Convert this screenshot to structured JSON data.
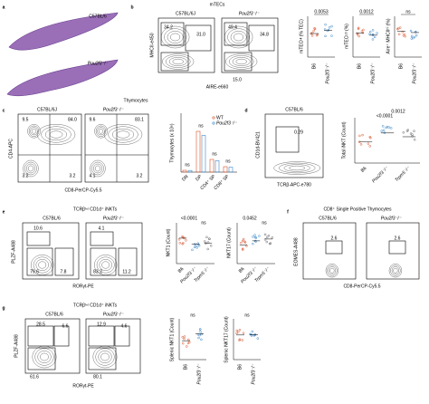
{
  "panel_a": {
    "letter": "a",
    "labels": [
      "C57BL/6",
      "Pou2f3⁻/⁻"
    ]
  },
  "panel_b": {
    "letter": "b",
    "title": "mTECs",
    "columns": [
      "C57BL/6J",
      "Pou2f3⁻/⁻"
    ],
    "y_axis": "MHCII-e450",
    "x_axis": "AIRE-e660",
    "gates": [
      [
        "34.2",
        "31.0"
      ],
      [
        "49.4",
        "34.8",
        "15.0"
      ]
    ],
    "plots": [
      {
        "y_axis": "mTECᴴᴵ (% TEC)",
        "stat": "0.0053",
        "groups": [
          "B6",
          "Pou2f3⁻/⁻"
        ]
      },
      {
        "y_axis": "mTECᴸᴼ (%)",
        "stat": "0.0012",
        "groups": [
          "B6",
          "Pou2f3⁻/⁻"
        ]
      },
      {
        "y_axis": "Aire⁺ MHCIIʰⁱ (%)",
        "stat": "ns",
        "groups": [
          "B6",
          "Pou2f3⁻/⁻"
        ]
      }
    ]
  },
  "panel_c": {
    "letter": "c",
    "title": "Thymocytes",
    "columns": [
      "C57BL/6J",
      "Pou2f3⁻/⁻"
    ],
    "y_axis": "CD4-APC",
    "x_axis": "CD8-PerCP-Cy5.5",
    "gates": [
      [
        "9.5",
        "84.0",
        "3.2",
        "3.2"
      ],
      [
        "9.6",
        "83.1",
        "4.1",
        "3.2"
      ]
    ],
    "plot": {
      "y_axis": "Thymocytes (x 10⁶)",
      "categories": [
        "DN",
        "DP",
        "CD4⁺ SP",
        "CD8⁺ SP"
      ],
      "legend": [
        "WT",
        "Pou2f3⁻/⁻"
      ],
      "stats": [
        "ns",
        "ns",
        "ns",
        "ns"
      ]
    }
  },
  "panel_d": {
    "letter": "d",
    "column": "C57BL/6",
    "gate": "0.29",
    "y_axis": "CD1d-BV421",
    "x_axis": "TCRβ-APC-e780",
    "plot": {
      "y_axis": "Total iNKT (Count)",
      "stats": [
        "0.0012",
        "<0.0001"
      ],
      "groups": [
        "B6",
        "Pou2f3⁻/⁻",
        "Trpm5⁻/⁻"
      ]
    }
  },
  "panel_e": {
    "letter": "e",
    "title": "TCRβᴵⁿᵗ CD1d⁺ iNKTs",
    "columns": [
      "C57BL/6",
      "Pou2f3⁻/⁻"
    ],
    "y_axis": "PLZF-A488",
    "x_axis": "RORγt-PE",
    "gates": [
      [
        "10.6",
        "79.6",
        "7.8"
      ],
      [
        "4.1",
        "83.2",
        "11.2"
      ]
    ],
    "plots": [
      {
        "y_axis": "NKT1 (Count)",
        "stats": [
          "<0.0001",
          "ns"
        ],
        "groups": [
          "B6",
          "Pou2f3⁻/⁻",
          "Trpm5⁻/⁻"
        ]
      },
      {
        "y_axis": "NKT17 (Count)",
        "stats": [
          "0.0452",
          "ns"
        ],
        "groups": [
          "B6",
          "Pou2f3⁻/⁻",
          "Trpm5⁻/⁻"
        ]
      }
    ]
  },
  "panel_f": {
    "letter": "f",
    "title": "CD8⁺ Single Positive Thymocytes",
    "columns": [
      "C57BL/6",
      "Pou2f3⁻/⁻"
    ],
    "y_axis": "EOMES-A488",
    "x_axis": "CD8-PerCP-Cy5.5",
    "gates": [
      "2.6",
      "2.6"
    ]
  },
  "panel_g": {
    "letter": "g",
    "title": "TCRβᴵⁿᵗ CD1d⁺ iNKTs",
    "columns": [
      "C57BL/6",
      "Pou2f3⁻/⁻"
    ],
    "y_axis": "PLZF-A488",
    "x_axis": "RORγt-PE",
    "gates": [
      [
        "28.5",
        "6.6",
        "61.6"
      ],
      [
        "12.9",
        "4.6",
        "80.1"
      ]
    ],
    "plots": [
      {
        "y_axis": "Splenic NKT1 (Count)",
        "stat": "ns",
        "groups": [
          "B6",
          "Pou2f3⁻/⁻"
        ]
      },
      {
        "y_axis": "Splenic NKT17 (Count)",
        "stat": "ns",
        "groups": [
          "B6",
          "Pou2f3⁻/⁻"
        ]
      }
    ]
  }
}
